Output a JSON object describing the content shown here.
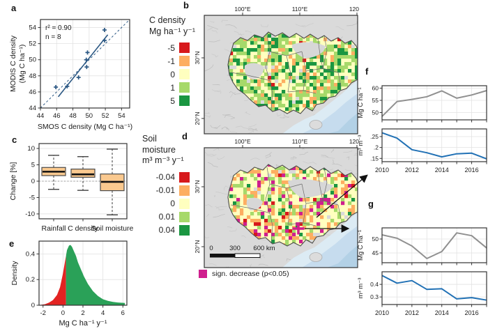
{
  "panels": {
    "a": "a",
    "b": "b",
    "c": "c",
    "d": "d",
    "e": "e",
    "f": "f",
    "g": "g"
  },
  "colors": {
    "ramp": [
      "#d7191c",
      "#fdae61",
      "#ffffbf",
      "#a6d96a",
      "#1a9641"
    ],
    "sig": "#cf1f8e",
    "scatter": "#2a5783",
    "gray_line": "#909090",
    "blue_line": "#2171b5",
    "box_fill": "#fac98f",
    "density_red": "#e32322",
    "density_green": "#2aa158",
    "land": "#dadada",
    "sea": [
      "#dcebf4",
      "#c6dcee",
      "#b3d1e6"
    ]
  },
  "chart_data": [
    {
      "id": "scatter-a",
      "type": "scatter",
      "xlabel": "SMOS C density (Mg C ha⁻¹)",
      "ylabel": [
        "MODIS C density",
        "(Mg C ha⁻¹)"
      ],
      "annotation_r2": "r² = 0.90",
      "annotation_n": "n = 8",
      "xlim": [
        44,
        55
      ],
      "ylim": [
        44,
        55
      ],
      "xticks": [
        44,
        46,
        48,
        50,
        52,
        54
      ],
      "yticks": [
        44,
        46,
        48,
        50,
        52,
        54
      ],
      "points": [
        [
          45.9,
          46.6
        ],
        [
          47.3,
          46.7
        ],
        [
          48.7,
          47.8
        ],
        [
          49.7,
          49.1
        ],
        [
          49.65,
          50.0
        ],
        [
          49.8,
          50.9
        ],
        [
          51.9,
          52.4
        ],
        [
          51.9,
          53.7
        ]
      ],
      "fit_line": {
        "x1": 46.2,
        "y1": 45.4,
        "x2": 52.3,
        "y2": 53.1
      },
      "identity_line": {
        "x1": 44,
        "y1": 44,
        "x2": 55,
        "y2": 55
      }
    },
    {
      "id": "box-c",
      "type": "box",
      "ylabel": "Change [%]",
      "ylim": [
        -11.5,
        11.5
      ],
      "yticks": [
        -10,
        -5,
        0,
        5,
        10
      ],
      "zero_line": 0,
      "categories": [
        "Rainfall",
        "C density",
        "Soil moisture"
      ],
      "boxes": [
        {
          "whisker_low": -2.5,
          "q1": 1.7,
          "median": 2.9,
          "q3": 4.2,
          "whisker_high": 7.9
        },
        {
          "whisker_low": -2.8,
          "q1": 1.2,
          "median": 2.1,
          "q3": 3.7,
          "whisker_high": 7.5
        },
        {
          "whisker_low": -10.3,
          "q1": -2.9,
          "median": -0.2,
          "q3": 2.2,
          "whisker_high": 9.8
        }
      ]
    },
    {
      "id": "density-e",
      "type": "area",
      "xlabel": "Mg C ha⁻¹ y⁻¹",
      "ylabel": "Density",
      "xlim": [
        -2.4,
        6.4
      ],
      "ylim": [
        0,
        0.5
      ],
      "xticks": [
        -2,
        0,
        2,
        4,
        6
      ],
      "yticks": [
        0,
        0.2,
        0.4
      ],
      "ytick_labels": [
        "0",
        "0.2",
        "0.4"
      ],
      "split_x": 0.3,
      "curve": [
        [
          -2.2,
          0.003
        ],
        [
          -1.8,
          0.008
        ],
        [
          -1.4,
          0.02
        ],
        [
          -1.0,
          0.04
        ],
        [
          -0.6,
          0.08
        ],
        [
          -0.3,
          0.14
        ],
        [
          0.0,
          0.25
        ],
        [
          0.2,
          0.34
        ],
        [
          0.4,
          0.43
        ],
        [
          0.6,
          0.465
        ],
        [
          0.75,
          0.47
        ],
        [
          0.9,
          0.455
        ],
        [
          1.1,
          0.42
        ],
        [
          1.3,
          0.385
        ],
        [
          1.5,
          0.335
        ],
        [
          1.8,
          0.28
        ],
        [
          2.1,
          0.225
        ],
        [
          2.5,
          0.165
        ],
        [
          3.0,
          0.11
        ],
        [
          3.5,
          0.072
        ],
        [
          4.0,
          0.047
        ],
        [
          4.5,
          0.034
        ],
        [
          5.0,
          0.026
        ],
        [
          5.5,
          0.021
        ],
        [
          6.2,
          0.018
        ]
      ]
    },
    {
      "id": "line-f-top",
      "type": "line",
      "ylabel": "Mg C ha⁻¹",
      "color_key": "gray_line",
      "x": [
        2010,
        2011,
        2012,
        2013,
        2014,
        2015,
        2016,
        2017
      ],
      "values": [
        48.4,
        54.5,
        55.4,
        56.5,
        58.9,
        55.9,
        57.2,
        59.0
      ],
      "ylim": [
        47,
        61
      ],
      "yticks": [
        50,
        55,
        60
      ],
      "ytick_labels": [
        "50",
        "55",
        "60"
      ],
      "xtick_labels": []
    },
    {
      "id": "line-f-bottom",
      "type": "line",
      "ylabel": "m³ m⁻³",
      "color_key": "blue_line",
      "x": [
        2010,
        2011,
        2012,
        2013,
        2014,
        2015,
        2016,
        2017
      ],
      "values": [
        0.267,
        0.243,
        0.19,
        0.176,
        0.157,
        0.171,
        0.174,
        0.148
      ],
      "ylim": [
        0.135,
        0.285
      ],
      "yticks": [
        0.15,
        0.2,
        0.25
      ],
      "ytick_labels": [
        ".15",
        ".2",
        ".25"
      ],
      "xtick_labels": [
        "2010",
        "2012",
        "2014",
        "2016"
      ]
    },
    {
      "id": "line-g-top",
      "type": "line",
      "ylabel": "Mg C ha⁻¹",
      "color_key": "gray_line",
      "x": [
        2010,
        2011,
        2012,
        2013,
        2014,
        2015,
        2016,
        2017
      ],
      "values": [
        51.5,
        50.3,
        47.5,
        43.0,
        45.5,
        52.2,
        51.2,
        46.8
      ],
      "ylim": [
        41.5,
        54
      ],
      "yticks": [
        45,
        50
      ],
      "ytick_labels": [
        "45",
        "50"
      ],
      "xtick_labels": []
    },
    {
      "id": "line-g-bottom",
      "type": "line",
      "ylabel": "m³ m⁻³",
      "color_key": "blue_line",
      "x": [
        2010,
        2011,
        2012,
        2013,
        2014,
        2015,
        2016,
        2017
      ],
      "values": [
        0.47,
        0.41,
        0.43,
        0.36,
        0.365,
        0.285,
        0.295,
        0.275
      ],
      "ylim": [
        0.24,
        0.5
      ],
      "yticks": [
        0.3,
        0.4
      ],
      "ytick_labels": [
        "0.3",
        "0.4"
      ],
      "xtick_labels": [
        "2010",
        "2012",
        "2014",
        "2016"
      ]
    }
  ],
  "legend_c_density": {
    "title": [
      "C density",
      "Mg ha⁻¹ y⁻¹"
    ],
    "entries": [
      {
        "label": "-5",
        "color": "#d7191c"
      },
      {
        "label": "-1",
        "color": "#fdae61"
      },
      {
        "label": "0",
        "color": "#ffffbf"
      },
      {
        "label": "1",
        "color": "#a6d96a"
      },
      {
        "label": "5",
        "color": "#1a9641"
      }
    ]
  },
  "legend_soil_moisture": {
    "title": [
      "Soil",
      "moisture",
      "m³ m⁻³ y⁻¹"
    ],
    "entries": [
      {
        "label": "-0.04",
        "color": "#d7191c"
      },
      {
        "label": "-0.01",
        "color": "#fdae61"
      },
      {
        "label": "0",
        "color": "#ffffbf"
      },
      {
        "label": "0.01",
        "color": "#a6d96a"
      },
      {
        "label": "0.04",
        "color": "#1a9641"
      }
    ]
  },
  "map_b": {
    "x_tick_labels": [
      "100°E",
      "110°E",
      "120"
    ],
    "y_tick_labels": [
      "30°N",
      "20°N"
    ]
  },
  "map_d": {
    "x_tick_labels": [
      "100°E",
      "110°E",
      "120"
    ],
    "y_tick_labels": [
      "30°N",
      "20°N"
    ],
    "scalebar_labels": [
      "0",
      "300",
      "600 km"
    ]
  },
  "sig_legend": {
    "label": "sign. decrease (p<0.05)",
    "color": "#cf1f8e"
  }
}
